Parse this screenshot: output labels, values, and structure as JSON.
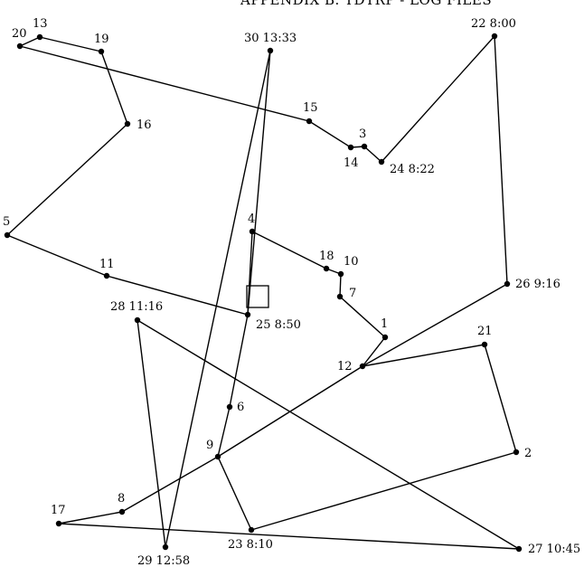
{
  "page_header": "APPENDIX B. TDTRP - LOG FILES",
  "nodes": [
    {
      "id": "n13",
      "label": "13"
    },
    {
      "id": "n20",
      "label": "20"
    },
    {
      "id": "n19",
      "label": "19"
    },
    {
      "id": "n16",
      "label": "16"
    },
    {
      "id": "n5",
      "label": "5"
    },
    {
      "id": "n11",
      "label": "11"
    },
    {
      "id": "n25",
      "label": "25 8:50"
    },
    {
      "id": "n30",
      "label": "30 13:33"
    },
    {
      "id": "n15",
      "label": "15"
    },
    {
      "id": "n14",
      "label": "14"
    },
    {
      "id": "n3",
      "label": "3"
    },
    {
      "id": "n24",
      "label": "24 8:22"
    },
    {
      "id": "n22",
      "label": "22 8:00"
    },
    {
      "id": "n26",
      "label": "26 9:16"
    },
    {
      "id": "n4",
      "label": "4"
    },
    {
      "id": "n18",
      "label": "18"
    },
    {
      "id": "n10",
      "label": "10"
    },
    {
      "id": "n7",
      "label": "7"
    },
    {
      "id": "n1",
      "label": "1"
    },
    {
      "id": "n12",
      "label": "12"
    },
    {
      "id": "n21",
      "label": "21"
    },
    {
      "id": "n2",
      "label": "2"
    },
    {
      "id": "n28",
      "label": "28 11:16"
    },
    {
      "id": "n6",
      "label": "6"
    },
    {
      "id": "n9",
      "label": "9"
    },
    {
      "id": "n8",
      "label": "8"
    },
    {
      "id": "n17",
      "label": "17"
    },
    {
      "id": "n23",
      "label": "23 8:10"
    },
    {
      "id": "n29",
      "label": "29 12:58"
    },
    {
      "id": "n27",
      "label": "27 10:45"
    }
  ],
  "depot_node": "n25",
  "edges": [
    [
      "n22",
      "n24"
    ],
    [
      "n24",
      "n3"
    ],
    [
      "n3",
      "n14"
    ],
    [
      "n14",
      "n15"
    ],
    [
      "n15",
      "n20"
    ],
    [
      "n20",
      "n13"
    ],
    [
      "n13",
      "n19"
    ],
    [
      "n19",
      "n16"
    ],
    [
      "n16",
      "n5"
    ],
    [
      "n5",
      "n11"
    ],
    [
      "n11",
      "n25"
    ],
    [
      "n25",
      "n6"
    ],
    [
      "n6",
      "n9"
    ],
    [
      "n9",
      "n23"
    ],
    [
      "n23",
      "n2"
    ],
    [
      "n2",
      "n21"
    ],
    [
      "n21",
      "n12"
    ],
    [
      "n12",
      "n1"
    ],
    [
      "n1",
      "n7"
    ],
    [
      "n7",
      "n10"
    ],
    [
      "n10",
      "n18"
    ],
    [
      "n18",
      "n4"
    ],
    [
      "n4",
      "n25"
    ],
    [
      "n25",
      "n30"
    ],
    [
      "n30",
      "n29"
    ],
    [
      "n29",
      "n28"
    ],
    [
      "n28",
      "n27"
    ],
    [
      "n27",
      "n17"
    ],
    [
      "n17",
      "n8"
    ],
    [
      "n8",
      "n9"
    ],
    [
      "n9",
      "n12"
    ],
    [
      "n12",
      "n26"
    ],
    [
      "n26",
      "n22"
    ]
  ]
}
